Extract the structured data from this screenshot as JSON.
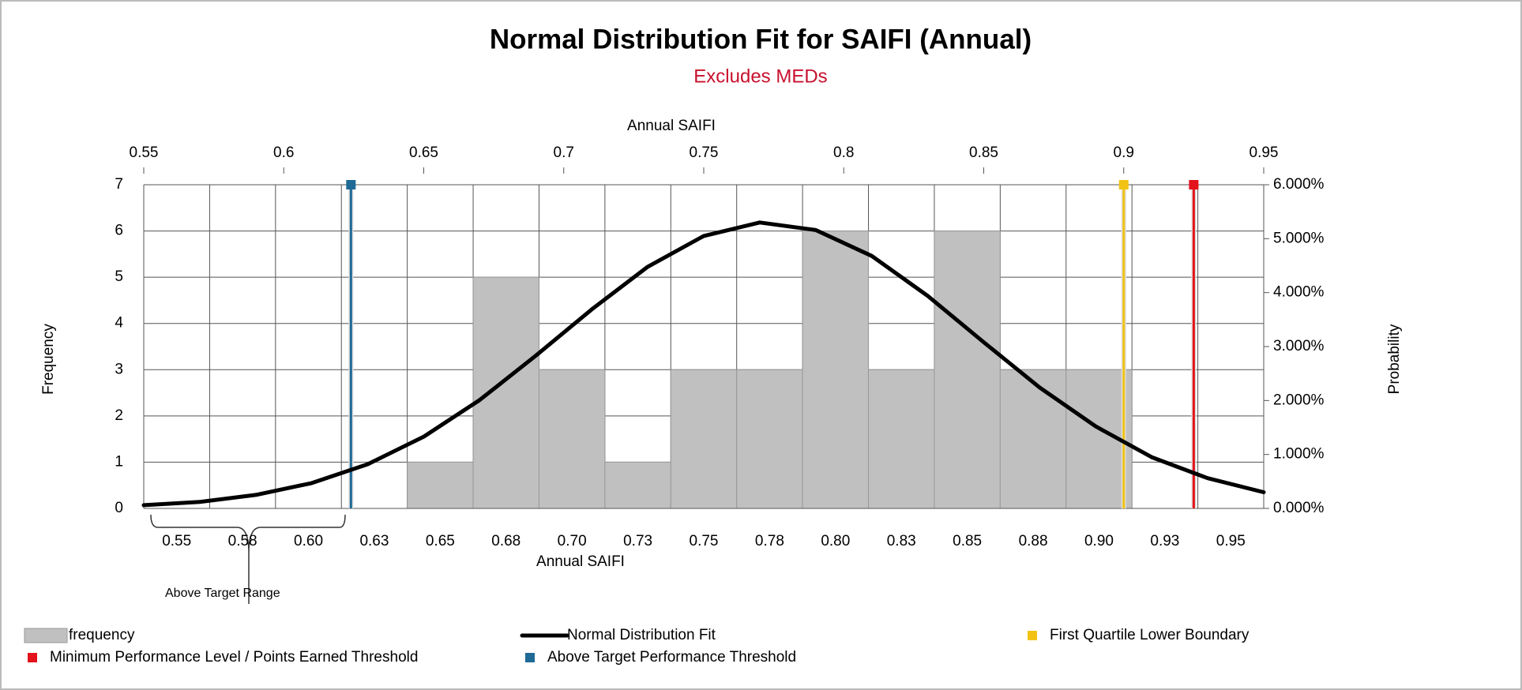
{
  "chart_data": {
    "type": "bar",
    "title": "Normal Distribution Fit for SAIFI (Annual)",
    "subtitle": "Excludes MEDs",
    "x_label_top": "Annual SAIFI",
    "x_label": "Annual SAIFI",
    "y_label": "Frequency",
    "y2_label": "Probability",
    "categories": [
      "0.55",
      "0.58",
      "0.60",
      "0.63",
      "0.65",
      "0.68",
      "0.70",
      "0.73",
      "0.75",
      "0.78",
      "0.80",
      "0.83",
      "0.85",
      "0.88",
      "0.90",
      "0.93",
      "0.95"
    ],
    "series": [
      {
        "name": "frequency",
        "color": "#c0c0c0",
        "values": [
          0,
          0,
          0,
          0,
          1,
          5,
          3,
          1,
          3,
          3,
          6,
          3,
          6,
          3,
          3,
          0,
          0
        ]
      },
      {
        "name": "Normal Distribution Fit",
        "type": "line",
        "color": "#000000",
        "axis": "y2",
        "x": [
          0.55,
          0.57,
          0.59,
          0.61,
          0.63,
          0.65,
          0.67,
          0.69,
          0.71,
          0.73,
          0.75,
          0.77,
          0.79,
          0.81,
          0.83,
          0.85,
          0.87,
          0.89,
          0.91,
          0.93,
          0.95
        ],
        "values": [
          0.06,
          0.12,
          0.25,
          0.47,
          0.82,
          1.33,
          2.01,
          2.83,
          3.69,
          4.48,
          5.05,
          5.3,
          5.16,
          4.68,
          3.94,
          3.08,
          2.24,
          1.52,
          0.95,
          0.56,
          0.3
        ]
      }
    ],
    "thresholds": [
      {
        "name": "First Quartile Lower Boundary",
        "color": "#f2c314",
        "x": 0.9
      },
      {
        "name": "Minimum Performance Level / Points Earned Threshold",
        "color": "#e3121b",
        "x": 0.925
      },
      {
        "name": "Above Target Performance Threshold",
        "color": "#1f6a96",
        "x": 0.624
      }
    ],
    "xlim": [
      0.55,
      0.95
    ],
    "xticks": [
      0.55,
      0.6,
      0.65,
      0.7,
      0.75,
      0.8,
      0.85,
      0.9,
      0.95
    ],
    "ylim": [
      0,
      7
    ],
    "yticks": [
      0,
      1,
      2,
      3,
      4,
      5,
      6,
      7
    ],
    "y2lim": [
      0,
      6
    ],
    "y2ticks": [
      {
        "value": 0,
        "label": "0.000%"
      },
      {
        "value": 1,
        "label": "1.000%"
      },
      {
        "value": 2,
        "label": "2.000%"
      },
      {
        "value": 3,
        "label": "3.000%"
      },
      {
        "value": 4,
        "label": "4.000%"
      },
      {
        "value": 5,
        "label": "5.000%"
      },
      {
        "value": 6,
        "label": "6.000%"
      }
    ],
    "grid": true,
    "annotations": [
      {
        "text": "Above Target Range"
      }
    ]
  }
}
